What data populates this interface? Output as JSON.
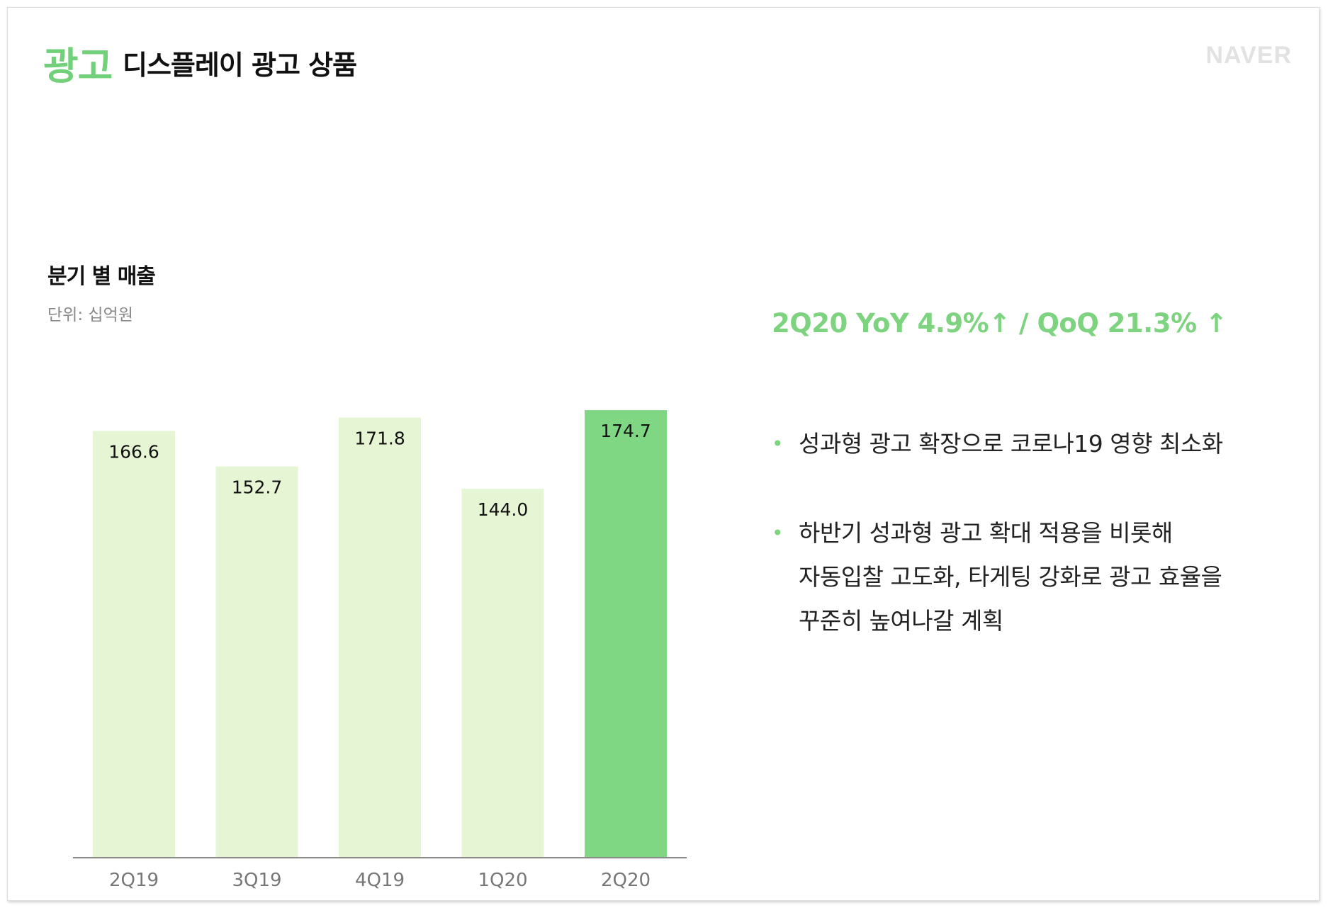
{
  "header": {
    "category": "광고",
    "title": "디스플레이 광고 상품",
    "logo_text": "NAVER"
  },
  "colors": {
    "accent": "#7dd37f",
    "bar_light": "#e6f5d3",
    "bar_highlight": "#7fd683"
  },
  "chart_data": {
    "type": "bar",
    "title": "분기 별 매출",
    "unit": "단위: 십억원",
    "categories": [
      "2Q19",
      "3Q19",
      "4Q19",
      "1Q20",
      "2Q20"
    ],
    "values": [
      166.6,
      152.7,
      171.8,
      144.0,
      174.7
    ],
    "value_labels": [
      "166.6",
      "152.7",
      "171.8",
      "144.0",
      "174.7"
    ],
    "highlight_index": 4,
    "grid": false,
    "legend": "none"
  },
  "summary": {
    "headline": "2Q20 YoY 4.9%↑ / QoQ 21.3% ↑",
    "bullets": [
      {
        "lines": [
          "성과형 광고 확장으로 코로나19 영향 최소화"
        ]
      },
      {
        "lines": [
          "하반기 성과형 광고 확대 적용을 비롯해",
          "자동입찰 고도화, 타게팅 강화로 광고 효율을",
          "꾸준히 높여나갈 계획"
        ]
      }
    ]
  }
}
